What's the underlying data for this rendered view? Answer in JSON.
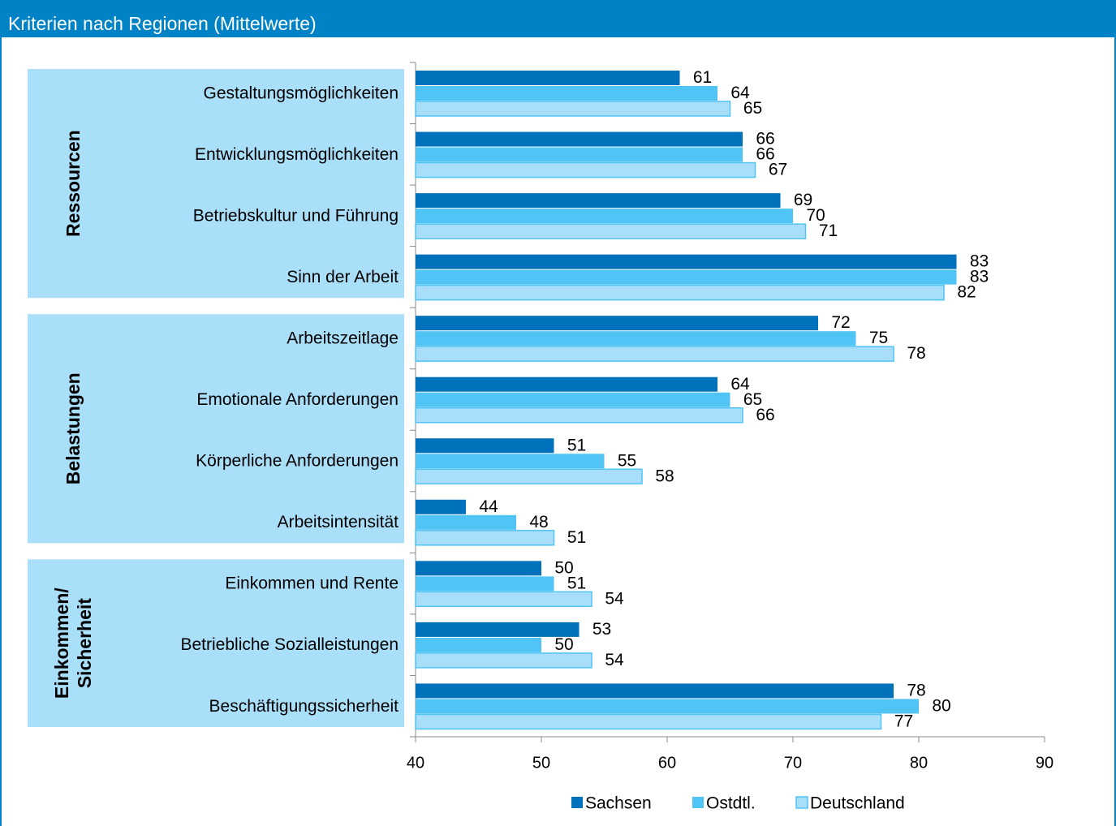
{
  "chart_data": {
    "type": "bar",
    "orientation": "horizontal",
    "title": "Kriterien nach Regionen (Mittelwerte)",
    "groups": [
      {
        "label": [
          "Ressourcen"
        ],
        "categories": [
          "Gestaltungsmöglichkeiten",
          "Entwicklungsmöglichkeiten",
          "Betriebskultur und Führung",
          "Sinn der Arbeit"
        ]
      },
      {
        "label": [
          "Belastungen"
        ],
        "categories": [
          "Arbeitszeitlage",
          "Emotionale Anforderungen",
          "Körperliche Anforderungen",
          "Arbeitsintensität"
        ]
      },
      {
        "label": [
          "Einkommen/",
          "Sicherheit"
        ],
        "categories": [
          "Einkommen und Rente",
          "Betriebliche Sozialleistungen",
          "Beschäftigungssicherheit"
        ]
      }
    ],
    "series": [
      {
        "name": "Sachsen",
        "color": "#0072bc",
        "values": [
          61,
          66,
          69,
          83,
          72,
          64,
          51,
          44,
          50,
          53,
          78
        ]
      },
      {
        "name": "Ostdtl.",
        "color": "#50c4f4",
        "values": [
          64,
          66,
          70,
          83,
          75,
          65,
          55,
          48,
          51,
          50,
          80
        ]
      },
      {
        "name": "Deutschland",
        "color": "#a9defa",
        "values": [
          65,
          67,
          71,
          82,
          78,
          66,
          58,
          51,
          54,
          54,
          77
        ]
      }
    ],
    "xlim": [
      40,
      90
    ],
    "xticks": [
      40,
      50,
      60,
      70,
      80,
      90
    ]
  }
}
